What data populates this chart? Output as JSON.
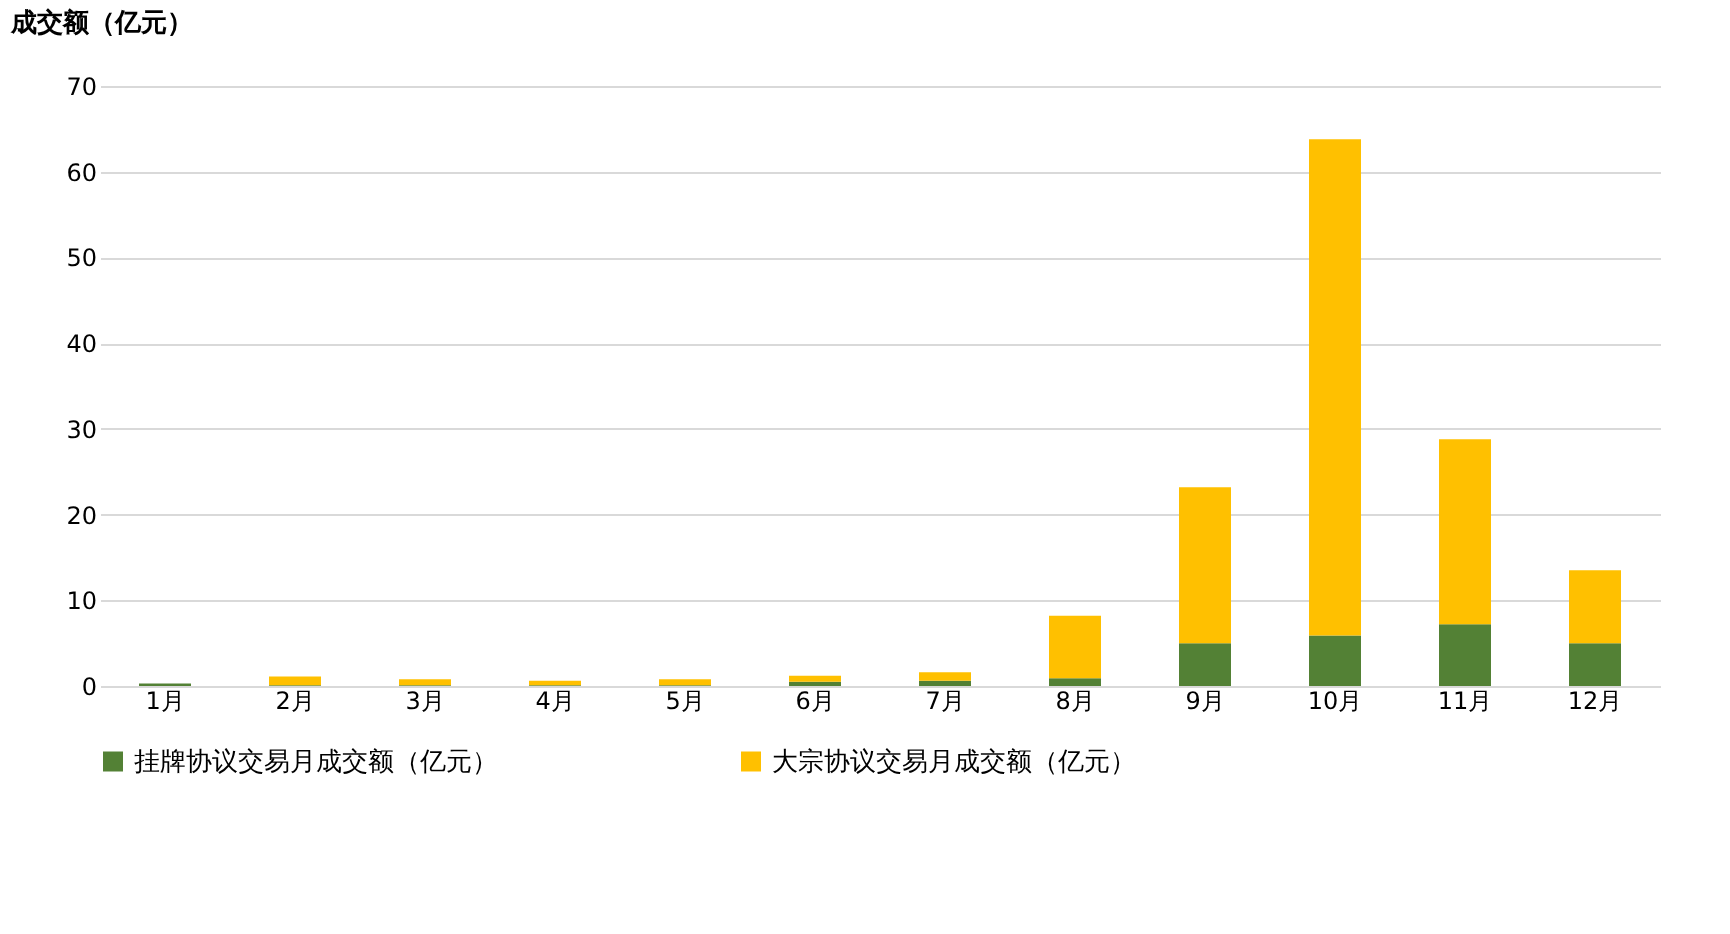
{
  "chart_data": {
    "type": "bar",
    "stacked": true,
    "ylabel": "成交额（亿元）",
    "categories": [
      "1月",
      "2月",
      "3月",
      "4月",
      "5月",
      "6月",
      "7月",
      "8月",
      "9月",
      "10月",
      "11月",
      "12月"
    ],
    "series": [
      {
        "name": "挂牌协议交易月成交额（亿元）",
        "color": "#538135",
        "values": [
          0.3,
          0.1,
          0.1,
          0.1,
          0.1,
          0.5,
          0.6,
          0.9,
          5.0,
          5.9,
          7.2,
          5.0
        ]
      },
      {
        "name": "大宗协议交易月成交额（亿元）",
        "color": "#ffc000",
        "values": [
          0,
          1.0,
          0.7,
          0.5,
          0.7,
          0.7,
          1.0,
          7.3,
          18.2,
          57.9,
          21.6,
          8.5
        ]
      }
    ],
    "ylim": [
      0,
      70
    ],
    "yticks": [
      0,
      10,
      20,
      30,
      40,
      50,
      60,
      70
    ],
    "grid": "y",
    "legend": "bottom"
  }
}
